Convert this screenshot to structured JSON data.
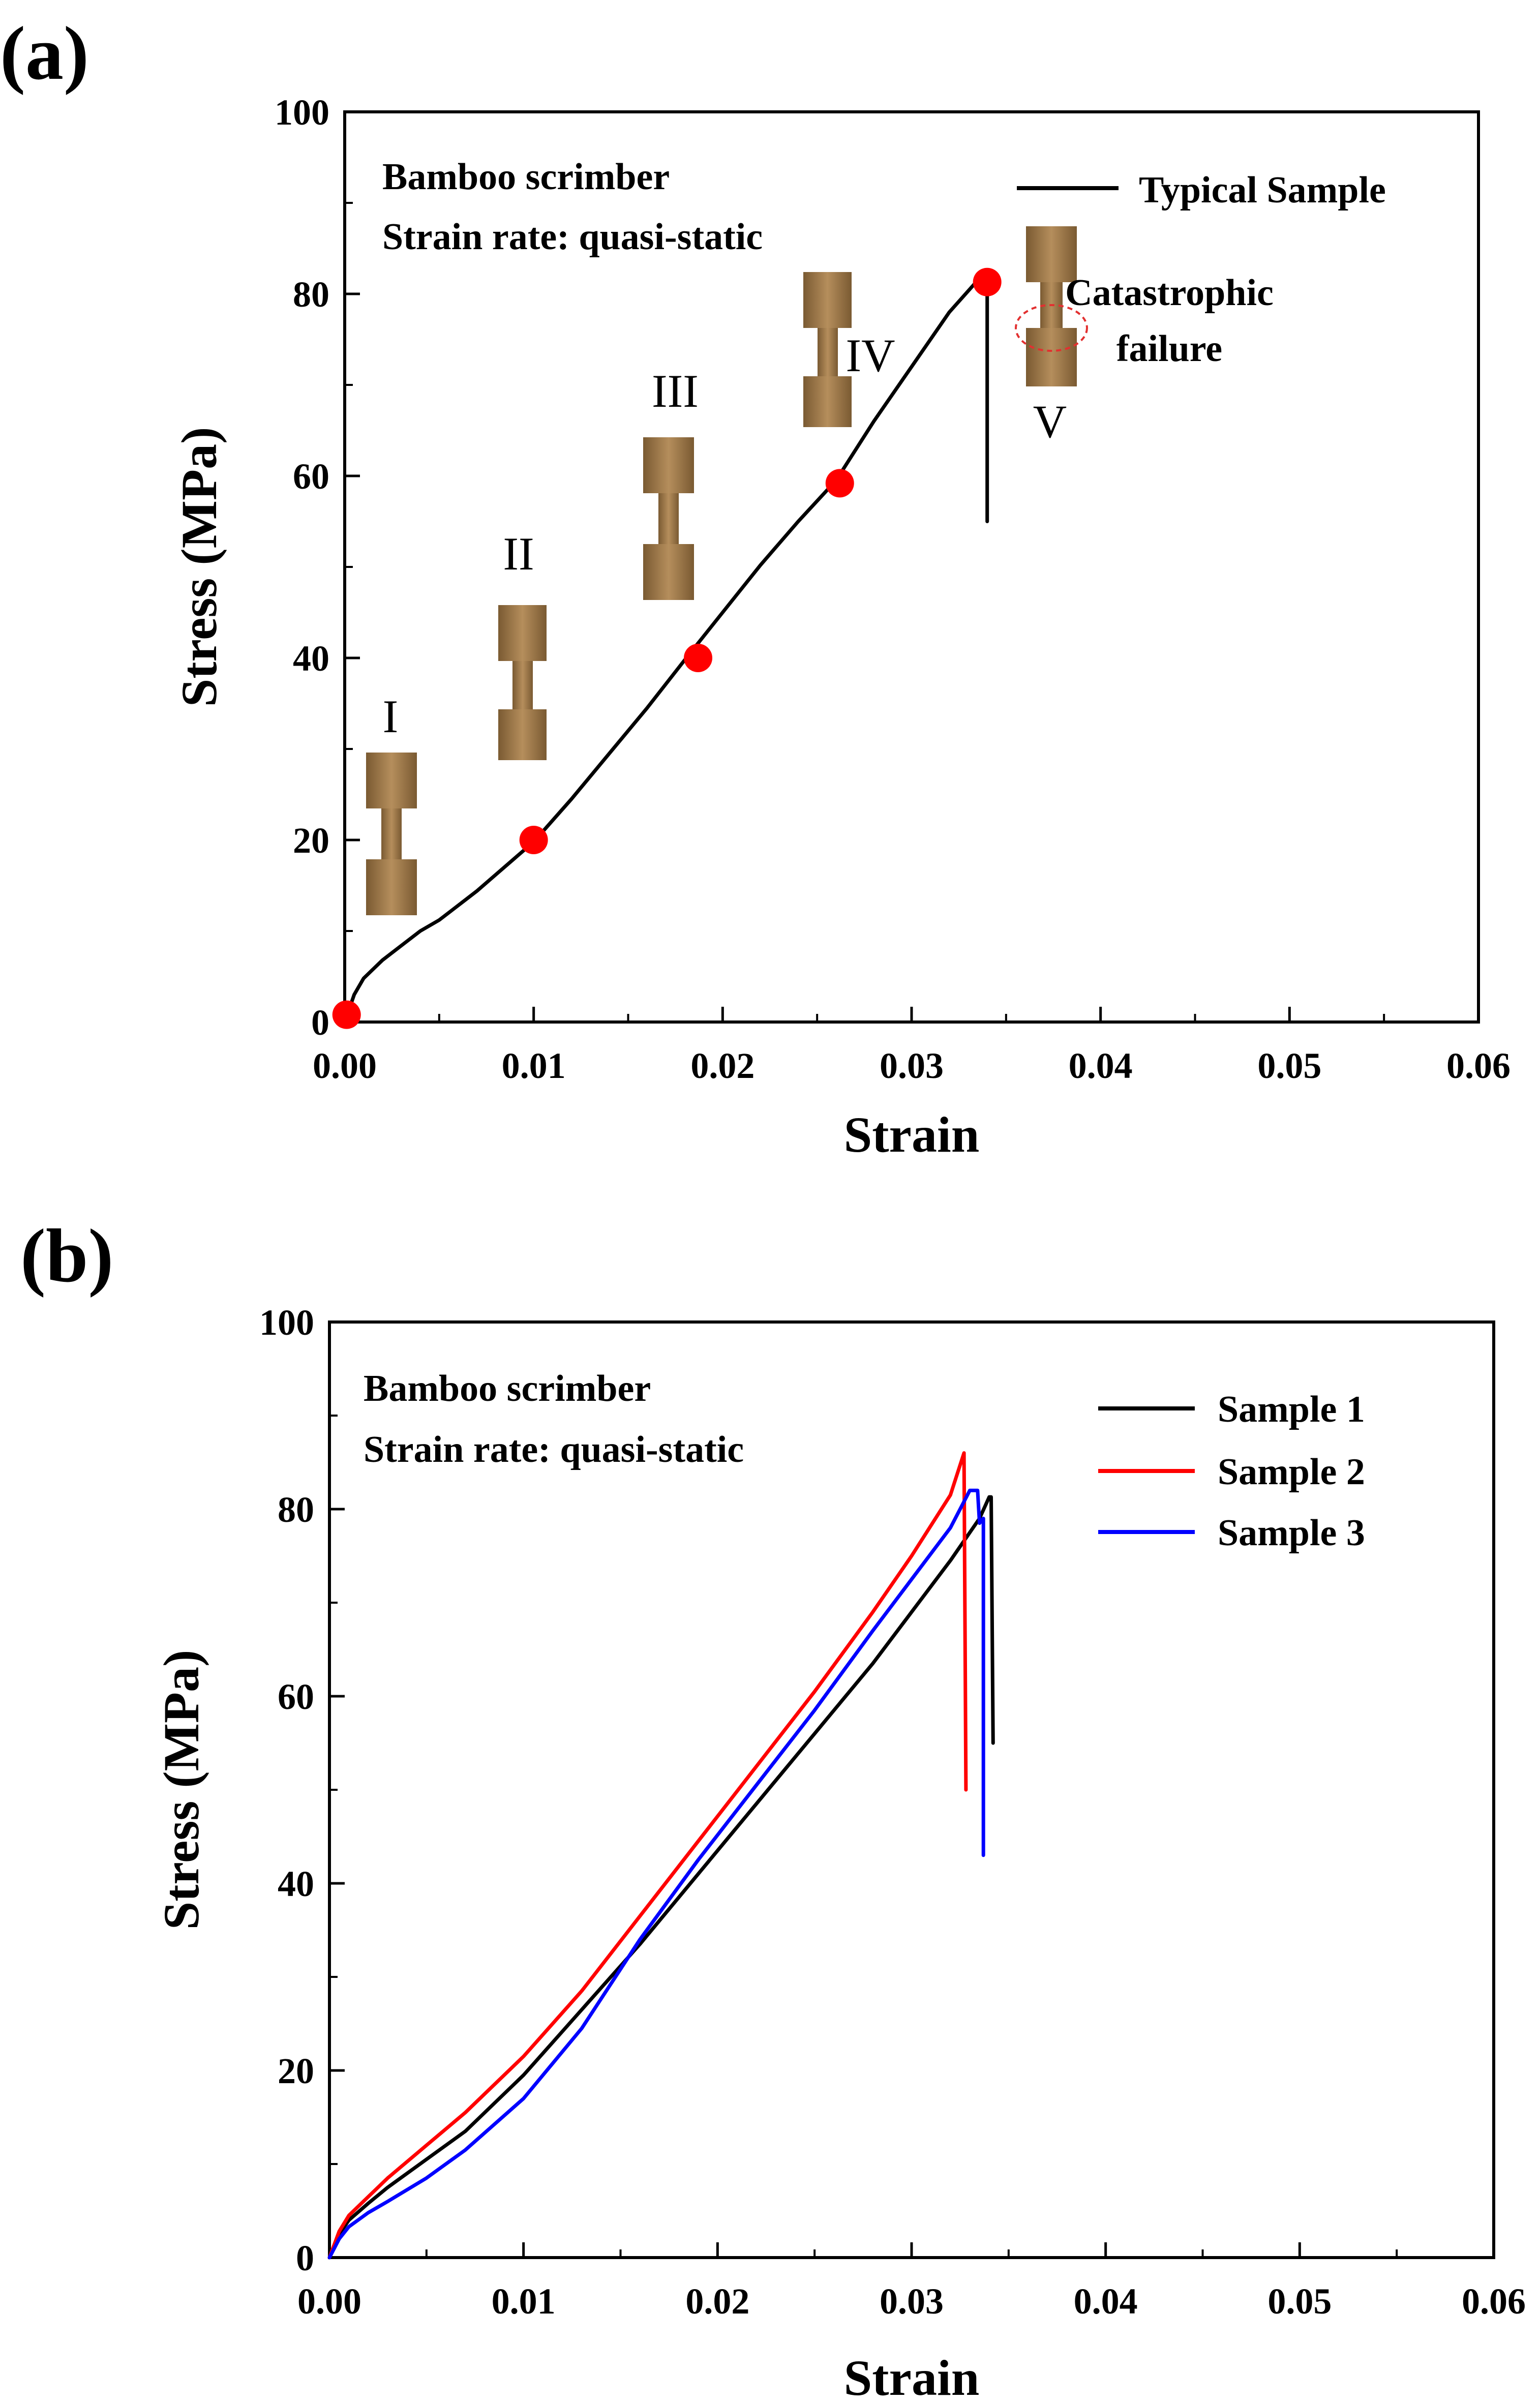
{
  "chart_data": [
    {
      "panel": "(a)",
      "type": "line",
      "xlabel": "Strain",
      "ylabel": "Stress (MPa)",
      "xlim": [
        0,
        0.06
      ],
      "ylim": [
        0,
        100
      ],
      "xticks": [
        "0.00",
        "0.01",
        "0.02",
        "0.03",
        "0.04",
        "0.05",
        "0.06"
      ],
      "yticks": [
        "0",
        "20",
        "40",
        "60",
        "80",
        "100"
      ],
      "annotations": [
        "Bamboo scrimber",
        "Strain rate:  quasi-static"
      ],
      "failure_label": [
        "Catastrophic",
        "failure"
      ],
      "legend_position": "top-right",
      "series": [
        {
          "name": "Typical Sample",
          "color": "#000000",
          "x": [
            0,
            0.0005,
            0.001,
            0.002,
            0.003,
            0.004,
            0.005,
            0.006,
            0.007,
            0.008,
            0.009,
            0.01,
            0.012,
            0.014,
            0.016,
            0.018,
            0.02,
            0.022,
            0.024,
            0.026,
            0.028,
            0.03,
            0.032,
            0.0335,
            0.034,
            0.034
          ],
          "y": [
            0,
            3.0,
            4.8,
            6.8,
            8.4,
            10.0,
            11.2,
            12.8,
            14.4,
            16.2,
            18.0,
            19.8,
            24.5,
            29.5,
            34.5,
            39.8,
            45.0,
            50.2,
            55.0,
            59.5,
            66.0,
            72.0,
            78.0,
            81.5,
            81.5,
            55.0
          ]
        }
      ],
      "markers": {
        "color": "#ff0000",
        "x": [
          0.0001,
          0.01,
          0.0187,
          0.0262,
          0.034
        ],
        "y": [
          0.8,
          20.0,
          40.0,
          59.2,
          81.3
        ]
      },
      "stages": [
        "I",
        "II",
        "III",
        "IV",
        "V"
      ]
    },
    {
      "panel": "(b)",
      "type": "line",
      "xlabel": "Strain",
      "ylabel": "Stress (MPa)",
      "xlim": [
        0,
        0.06
      ],
      "ylim": [
        0,
        100
      ],
      "xticks": [
        "0.00",
        "0.01",
        "0.02",
        "0.03",
        "0.04",
        "0.05",
        "0.06"
      ],
      "yticks": [
        "0",
        "20",
        "40",
        "60",
        "80",
        "100"
      ],
      "annotations": [
        "Bamboo scrimber",
        "Strain rate:  quasi-static"
      ],
      "legend_position": "top-right",
      "series": [
        {
          "name": "Sample 1",
          "color": "#000000",
          "x": [
            0,
            0.0005,
            0.001,
            0.002,
            0.003,
            0.005,
            0.007,
            0.01,
            0.013,
            0.016,
            0.019,
            0.022,
            0.025,
            0.028,
            0.03,
            0.032,
            0.0335,
            0.034,
            0.0341,
            0.0342
          ],
          "y": [
            0,
            2.5,
            4.0,
            5.8,
            7.5,
            10.5,
            13.5,
            19.5,
            26.5,
            33.5,
            41.0,
            48.5,
            56.0,
            63.5,
            69.0,
            74.5,
            79.0,
            81.3,
            81.3,
            55.0
          ]
        },
        {
          "name": "Sample 2",
          "color": "#ff0000",
          "x": [
            0,
            0.0005,
            0.001,
            0.002,
            0.003,
            0.005,
            0.007,
            0.01,
            0.013,
            0.016,
            0.019,
            0.022,
            0.025,
            0.028,
            0.03,
            0.032,
            0.0327,
            0.0328
          ],
          "y": [
            0,
            2.8,
            4.5,
            6.5,
            8.5,
            12.0,
            15.5,
            21.5,
            28.5,
            36.5,
            44.5,
            52.5,
            60.5,
            69.0,
            75.0,
            81.5,
            86.0,
            50.0
          ]
        },
        {
          "name": "Sample 3",
          "color": "#0000ff",
          "x": [
            0,
            0.0005,
            0.001,
            0.002,
            0.003,
            0.005,
            0.007,
            0.01,
            0.013,
            0.016,
            0.019,
            0.022,
            0.025,
            0.028,
            0.03,
            0.032,
            0.033,
            0.0334,
            0.0335,
            0.0337,
            0.0337
          ],
          "y": [
            0,
            2.0,
            3.3,
            4.8,
            6.0,
            8.5,
            11.5,
            17.0,
            24.5,
            34.0,
            42.5,
            50.5,
            58.5,
            67.0,
            72.5,
            78.0,
            82.0,
            82.0,
            78.5,
            79.0,
            43.0
          ]
        }
      ]
    }
  ]
}
